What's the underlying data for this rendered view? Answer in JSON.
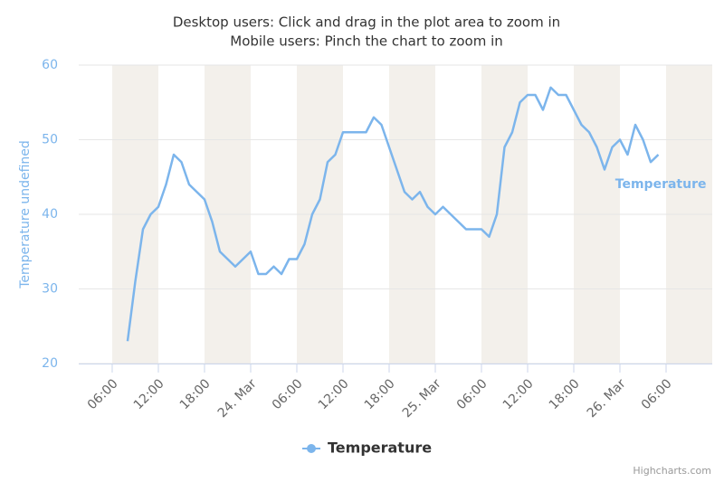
{
  "chart_data": {
    "type": "line",
    "title": [
      "Desktop users: Click and drag in the plot area to zoom in",
      "Mobile users: Pinch the chart to zoom in"
    ],
    "y_label": "Temperature undefined",
    "credits": "Highcharts.com",
    "xlim": [
      1.65,
      84
    ],
    "xticks": [
      {
        "value": 6,
        "label": "06:00"
      },
      {
        "value": 12,
        "label": "12:00"
      },
      {
        "value": 18,
        "label": "18:00"
      },
      {
        "value": 24,
        "label": "24. Mar"
      },
      {
        "value": 30,
        "label": "06:00"
      },
      {
        "value": 36,
        "label": "12:00"
      },
      {
        "value": 42,
        "label": "18:00"
      },
      {
        "value": 48,
        "label": "25. Mar"
      },
      {
        "value": 54,
        "label": "06:00"
      },
      {
        "value": 60,
        "label": "12:00"
      },
      {
        "value": 66,
        "label": "18:00"
      },
      {
        "value": 72,
        "label": "26. Mar"
      },
      {
        "value": 78,
        "label": "06:00"
      }
    ],
    "ylim": [
      20,
      60
    ],
    "yticks": [
      20,
      30,
      40,
      50,
      60
    ],
    "grid": true,
    "plot_bands": [
      [
        6,
        12
      ],
      [
        18,
        24
      ],
      [
        30,
        36
      ],
      [
        42,
        48
      ],
      [
        54,
        60
      ],
      [
        66,
        72
      ],
      [
        78,
        84
      ]
    ],
    "band_color": "#f3f0eb",
    "x": [
      8,
      9,
      10,
      11,
      12,
      13,
      14,
      15,
      16,
      17,
      18,
      19,
      20,
      21,
      22,
      23,
      24,
      25,
      26,
      27,
      28,
      29,
      30,
      31,
      32,
      33,
      34,
      35,
      36,
      37,
      38,
      39,
      40,
      41,
      42,
      43,
      44,
      45,
      46,
      47,
      48,
      49,
      50,
      51,
      52,
      53,
      54,
      55,
      56,
      57,
      58,
      59,
      60,
      61,
      62,
      63,
      64,
      65,
      66,
      67,
      68,
      69,
      70,
      71,
      72,
      73,
      74,
      75,
      76,
      77
    ],
    "series": [
      {
        "name": "Temperature",
        "color": "#7cb5ec",
        "values": [
          23,
          31,
          38,
          40,
          41,
          44,
          48,
          47,
          44,
          43,
          42,
          39,
          35,
          34,
          33,
          34,
          35,
          32,
          32,
          33,
          32,
          34,
          34,
          36,
          40,
          42,
          47,
          48,
          51,
          51,
          51,
          51,
          53,
          52,
          49,
          46,
          43,
          42,
          43,
          41,
          40,
          41,
          40,
          39,
          38,
          38,
          38,
          37,
          40,
          49,
          51,
          55,
          56,
          56,
          54,
          57,
          56,
          56,
          54,
          52,
          51,
          49,
          46,
          49,
          50,
          48,
          52,
          50,
          47,
          48
        ]
      }
    ]
  }
}
